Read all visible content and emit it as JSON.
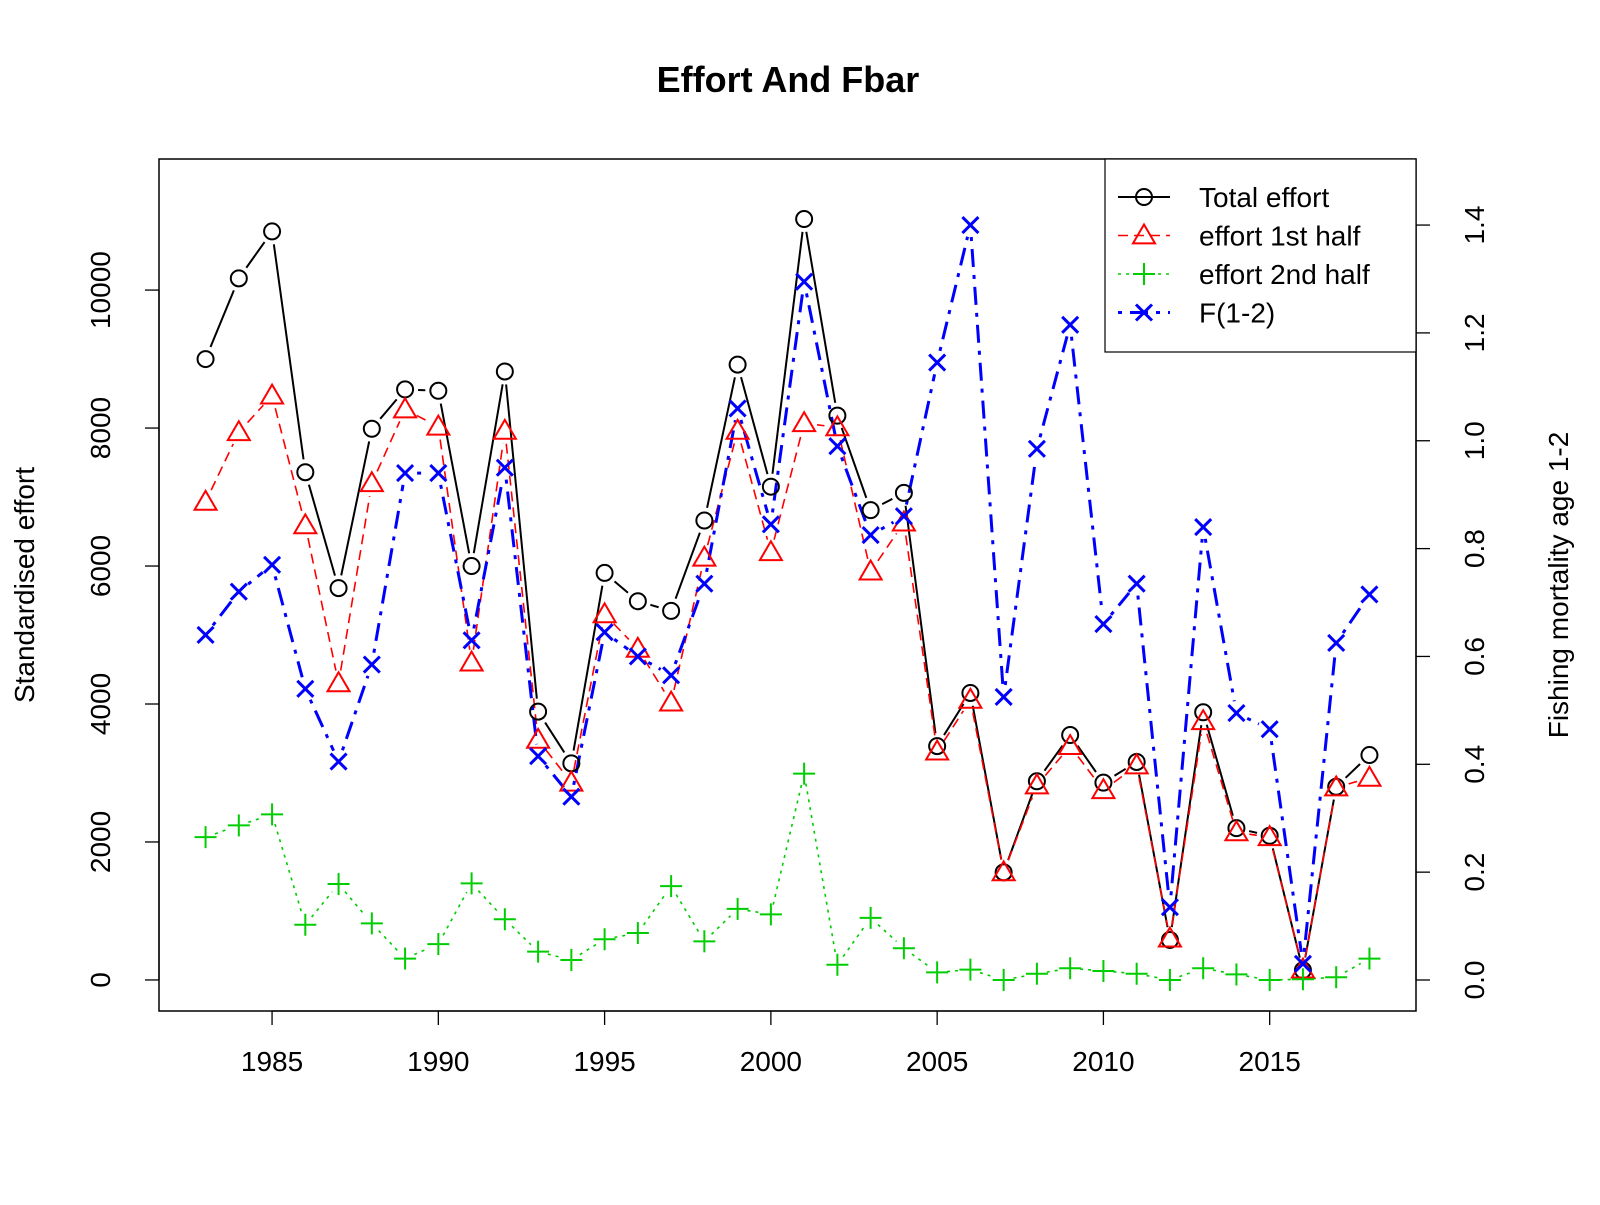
{
  "chart_data": {
    "type": "line",
    "title": "Effort And Fbar",
    "xlabel": "",
    "ylabel": "Standardised effort",
    "ylabel_right": "Fishing mortality age 1-2",
    "xlim": [
      1981.6,
      2019.4
    ],
    "ylim": [
      -450,
      11900
    ],
    "ylim_right": [
      -0.0575,
      1.5225
    ],
    "x_ticks": [
      1985,
      1990,
      1995,
      2000,
      2005,
      2010,
      2015
    ],
    "y_ticks": [
      0,
      2000,
      4000,
      6000,
      8000,
      10000
    ],
    "y_ticks_right": [
      "0.0",
      "0.2",
      "0.4",
      "0.6",
      "0.8",
      "1.0",
      "1.2",
      "1.4"
    ],
    "legend_position": "top-right",
    "x": [
      1983,
      1984,
      1985,
      1986,
      1987,
      1988,
      1989,
      1990,
      1991,
      1992,
      1993,
      1994,
      1995,
      1996,
      1997,
      1998,
      1999,
      2000,
      2001,
      2002,
      2003,
      2004,
      2005,
      2006,
      2007,
      2008,
      2009,
      2010,
      2011,
      2012,
      2013,
      2014,
      2015,
      2016,
      2017,
      2018
    ],
    "series": [
      {
        "name": "Total effort",
        "axis": "left",
        "color": "#000000",
        "line": "solid",
        "marker": "circle",
        "values": [
          9000,
          10170,
          10850,
          7360,
          5680,
          7990,
          8560,
          8540,
          6000,
          8820,
          3890,
          3140,
          5900,
          5490,
          5350,
          6660,
          8920,
          7150,
          11030,
          8180,
          6810,
          7060,
          3390,
          4160,
          1560,
          2880,
          3550,
          2860,
          3160,
          580,
          3880,
          2200,
          2090,
          140,
          2800,
          3260
        ]
      },
      {
        "name": "effort 1st half",
        "axis": "left",
        "color": "#ff0000",
        "line": "dashed",
        "marker": "triangle",
        "values": [
          6930,
          7940,
          8470,
          6590,
          4300,
          7200,
          8270,
          8020,
          4600,
          7960,
          3480,
          2860,
          5300,
          4800,
          4020,
          6120,
          7960,
          6200,
          8070,
          8010,
          5920,
          6630,
          3310,
          4060,
          1560,
          2820,
          3390,
          2750,
          3110,
          600,
          3750,
          2140,
          2070,
          150,
          2790,
          2930
        ]
      },
      {
        "name": "effort 2nd half",
        "axis": "left",
        "color": "#00cd00",
        "line": "dotted",
        "marker": "plus",
        "values": [
          2070,
          2240,
          2400,
          800,
          1390,
          820,
          310,
          520,
          1400,
          880,
          410,
          290,
          590,
          680,
          1360,
          560,
          1030,
          950,
          2990,
          220,
          900,
          460,
          110,
          150,
          0,
          90,
          170,
          130,
          90,
          0,
          170,
          80,
          0,
          10,
          40,
          310
        ]
      },
      {
        "name": "F(1-2)",
        "axis": "right",
        "color": "#0000ff",
        "line": "dashdot",
        "marker": "x",
        "values": [
          0.64,
          0.72,
          0.77,
          0.54,
          0.405,
          0.585,
          0.94,
          0.94,
          0.63,
          0.95,
          0.415,
          0.34,
          0.645,
          0.6,
          0.565,
          0.735,
          1.06,
          0.845,
          1.295,
          0.99,
          0.825,
          0.86,
          1.145,
          1.4,
          0.525,
          0.985,
          1.215,
          0.66,
          0.735,
          0.135,
          0.84,
          0.495,
          0.465,
          0.03,
          0.625,
          0.715
        ]
      }
    ]
  }
}
